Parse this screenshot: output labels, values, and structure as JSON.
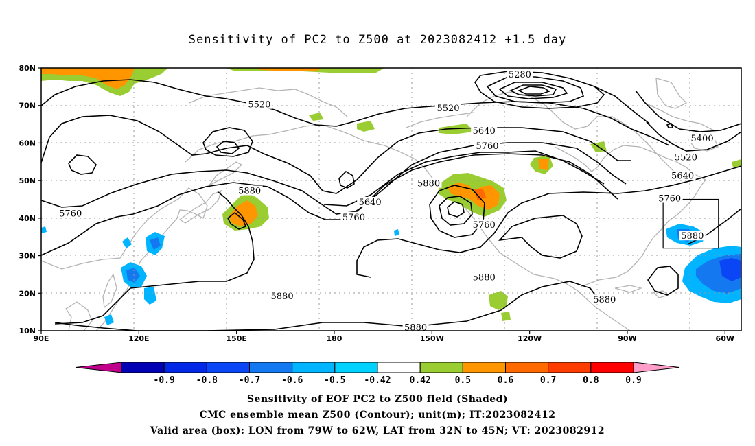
{
  "title": "Sensitivity of PC2 to Z500 at 2023082412 +1.5 day",
  "map": {
    "lon_range": [
      90,
      305
    ],
    "lat_range": [
      10,
      80
    ],
    "lat_ticks": [
      {
        "lat": 80,
        "label": "80N"
      },
      {
        "lat": 70,
        "label": "70N"
      },
      {
        "lat": 60,
        "label": "60N"
      },
      {
        "lat": 50,
        "label": "50N"
      },
      {
        "lat": 40,
        "label": "40N"
      },
      {
        "lat": 30,
        "label": "30N"
      },
      {
        "lat": 20,
        "label": "20N"
      },
      {
        "lat": 10,
        "label": "10N"
      }
    ],
    "lon_ticks": [
      {
        "lon": 90,
        "label": "90E"
      },
      {
        "lon": 120,
        "label": "120E"
      },
      {
        "lon": 150,
        "label": "150E"
      },
      {
        "lon": 180,
        "label": "180"
      },
      {
        "lon": 210,
        "label": "150W"
      },
      {
        "lon": 240,
        "label": "120W"
      },
      {
        "lon": 270,
        "label": "90W"
      },
      {
        "lon": 300,
        "label": "60W"
      }
    ],
    "grid": "dotted",
    "valid_box": {
      "lon_min": 281,
      "lon_max": 298,
      "lat_min": 32,
      "lat_max": 45
    },
    "contour_labels": [
      {
        "text": "5520",
        "lon": 157,
        "lat": 70
      },
      {
        "text": "5280",
        "lon": 237,
        "lat": 78
      },
      {
        "text": "5520",
        "lon": 215,
        "lat": 69
      },
      {
        "text": "5640",
        "lon": 226,
        "lat": 63
      },
      {
        "text": "5760",
        "lon": 227,
        "lat": 59
      },
      {
        "text": "5400",
        "lon": 293,
        "lat": 61
      },
      {
        "text": "5520",
        "lon": 288,
        "lat": 56
      },
      {
        "text": "5640",
        "lon": 287,
        "lat": 51
      },
      {
        "text": "5760",
        "lon": 283,
        "lat": 45
      },
      {
        "text": "5880",
        "lon": 290,
        "lat": 35
      },
      {
        "text": "5880",
        "lon": 154,
        "lat": 47
      },
      {
        "text": "5760",
        "lon": 99,
        "lat": 41
      },
      {
        "text": "5880",
        "lon": 209,
        "lat": 49
      },
      {
        "text": "5640",
        "lon": 191,
        "lat": 44
      },
      {
        "text": "5760",
        "lon": 186,
        "lat": 40
      },
      {
        "text": "5760",
        "lon": 226,
        "lat": 38
      },
      {
        "text": "5880",
        "lon": 226,
        "lat": 24
      },
      {
        "text": "5880",
        "lon": 164,
        "lat": 19
      },
      {
        "text": "5880",
        "lon": 263,
        "lat": 18
      },
      {
        "text": "5880",
        "lon": 205,
        "lat": 10.6
      }
    ]
  },
  "colorbar": {
    "labels": [
      "-0.9",
      "-0.8",
      "-0.7",
      "-0.6",
      "-0.5",
      "-0.42",
      "0.42",
      "0.5",
      "0.6",
      "0.7",
      "0.8",
      "0.9"
    ],
    "colors": [
      "#c0008a",
      "#0000b4",
      "#0028e6",
      "#0a46f5",
      "#1478f0",
      "#00b4ff",
      "#00d2ff",
      "#ffffff",
      "#9acd32",
      "#ff9600",
      "#ff6a00",
      "#ff3c00",
      "#ff0000",
      "#ff9ec8"
    ]
  },
  "captions": [
    "Sensitivity of EOF PC2 to Z500 field (Shaded)",
    "CMC ensemble mean Z500 (Contour); unit(m); IT:2023082412",
    "Valid area (box): LON from 79W to 62W, LAT from 32N to 45N; VT: 2023082912"
  ]
}
